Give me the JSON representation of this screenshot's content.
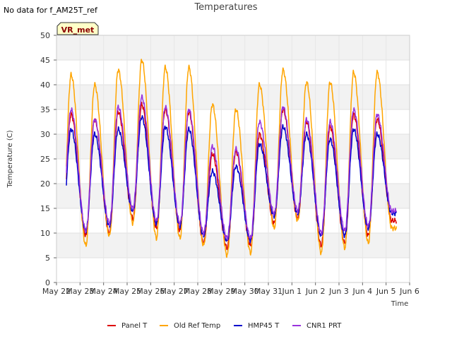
{
  "header": {
    "status_note": "No data for f_AM25T_ref",
    "badge": "VR_met"
  },
  "chart_data": {
    "type": "line",
    "title": "Temperatures",
    "xlabel": "Time",
    "ylabel": "Temperature (C)",
    "ylim": [
      0,
      50
    ],
    "yticks": [
      0,
      5,
      10,
      15,
      20,
      25,
      30,
      35,
      40,
      45,
      50
    ],
    "xlim": [
      "May 22",
      "Jun 6"
    ],
    "xticks": [
      "May 22",
      "May 23",
      "May 24",
      "May 25",
      "May 26",
      "May 27",
      "May 28",
      "May 29",
      "May 30",
      "May 31",
      "Jun 1",
      "Jun 2",
      "Jun 3",
      "Jun 4",
      "Jun 5",
      "Jun 6"
    ],
    "grid": true,
    "legend_position": "bottom",
    "series": [
      {
        "name": "Panel T",
        "color": "#dd0000",
        "daily_min": [
          10.5,
          9.5,
          10.0,
          13.0,
          11.0,
          10.5,
          8.0,
          7.0,
          7.5,
          12.0,
          13.0,
          7.5,
          8.0,
          9.5,
          12.5
        ],
        "daily_max": [
          34.0,
          33.0,
          34.5,
          36.0,
          35.0,
          34.5,
          26.0,
          26.5,
          30.0,
          35.0,
          32.5,
          31.5,
          34.0,
          33.0
        ]
      },
      {
        "name": "Old Ref Temp",
        "color": "#ffa500",
        "daily_min": [
          9.0,
          7.5,
          9.5,
          12.0,
          9.0,
          9.0,
          7.5,
          5.5,
          6.0,
          11.0,
          12.5,
          6.0,
          7.0,
          8.0,
          11.0
        ],
        "daily_max": [
          42.0,
          40.0,
          43.0,
          45.0,
          43.5,
          43.5,
          36.0,
          35.0,
          40.0,
          43.0,
          40.5,
          40.5,
          42.5,
          42.5
        ]
      },
      {
        "name": "HMP45 T",
        "color": "#0000cc",
        "daily_min": [
          11.5,
          10.5,
          11.5,
          14.5,
          12.0,
          11.5,
          9.5,
          8.5,
          8.5,
          13.5,
          14.0,
          9.5,
          9.5,
          11.0,
          14.0
        ],
        "daily_max": [
          31.0,
          30.0,
          31.0,
          33.5,
          31.5,
          31.0,
          22.5,
          23.5,
          28.0,
          31.5,
          30.0,
          29.0,
          31.0,
          30.0
        ]
      },
      {
        "name": "CNR1 PRT",
        "color": "#9933dd",
        "daily_min": [
          12.5,
          10.5,
          12.0,
          15.0,
          12.5,
          12.0,
          10.0,
          9.0,
          9.0,
          14.0,
          14.5,
          10.0,
          10.5,
          11.5,
          14.5
        ],
        "daily_max": [
          35.0,
          33.0,
          35.5,
          37.5,
          35.5,
          35.0,
          27.5,
          27.0,
          32.5,
          35.5,
          33.0,
          32.5,
          35.0,
          34.0
        ]
      }
    ]
  }
}
